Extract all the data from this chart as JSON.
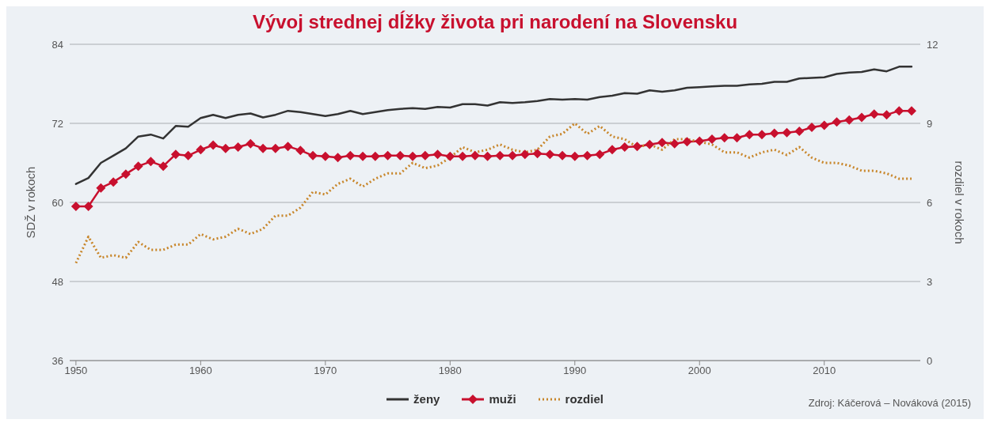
{
  "chart_data": {
    "type": "line",
    "title": "Vývoj strednej dĺžky života pri narodení na Slovensku",
    "ylabel": "SDŽ v rokoch",
    "y2label": "rozdiel v rokoch",
    "annotations": [
      "Zdroj: Káčerová – Nováková (2015)"
    ],
    "x": [
      1950,
      1951,
      1952,
      1953,
      1954,
      1955,
      1956,
      1957,
      1958,
      1959,
      1960,
      1961,
      1962,
      1963,
      1964,
      1965,
      1966,
      1967,
      1968,
      1969,
      1970,
      1971,
      1972,
      1973,
      1974,
      1975,
      1976,
      1977,
      1978,
      1979,
      1980,
      1981,
      1982,
      1983,
      1984,
      1985,
      1986,
      1987,
      1988,
      1989,
      1990,
      1991,
      1992,
      1993,
      1994,
      1995,
      1996,
      1997,
      1998,
      1999,
      2000,
      2001,
      2002,
      2003,
      2004,
      2005,
      2006,
      2007,
      2008,
      2009,
      2010,
      2011,
      2012,
      2013,
      2014,
      2015,
      2016,
      2017
    ],
    "xlim": [
      1949.5,
      2017.7
    ],
    "xticks": [
      1950,
      1960,
      1970,
      1980,
      1990,
      2000,
      2010
    ],
    "ylim": [
      36,
      84
    ],
    "yticks": [
      36,
      48,
      60,
      72,
      84
    ],
    "y2lim": [
      0,
      12
    ],
    "y2ticks": [
      0,
      3,
      6,
      9,
      12
    ],
    "grid": "y",
    "legend": "bottom",
    "series": [
      {
        "name": "ženy",
        "color": "#333333",
        "marker": "none",
        "line_style": "solid",
        "values": [
          62.8,
          63.7,
          66.0,
          67.1,
          68.2,
          70.0,
          70.3,
          69.7,
          71.6,
          71.5,
          72.8,
          73.3,
          72.8,
          73.3,
          73.5,
          72.9,
          73.3,
          73.9,
          73.7,
          73.4,
          73.1,
          73.4,
          73.9,
          73.4,
          73.7,
          74.0,
          74.2,
          74.3,
          74.2,
          74.5,
          74.4,
          74.9,
          74.9,
          74.7,
          75.2,
          75.1,
          75.2,
          75.4,
          75.7,
          75.6,
          75.7,
          75.6,
          76.0,
          76.2,
          76.6,
          76.5,
          77.0,
          76.8,
          77.0,
          77.4,
          77.5,
          77.6,
          77.7,
          77.7,
          77.9,
          78.0,
          78.3,
          78.3,
          78.8,
          78.9,
          79.0,
          79.5,
          79.7,
          79.8,
          80.2,
          79.9,
          80.6,
          80.6
        ]
      },
      {
        "name": "muži",
        "color": "#c8102e",
        "marker": "diamond",
        "line_style": "solid",
        "values": [
          59.4,
          59.4,
          62.2,
          63.1,
          64.3,
          65.5,
          66.2,
          65.5,
          67.3,
          67.1,
          68.0,
          68.7,
          68.2,
          68.4,
          68.9,
          68.2,
          68.2,
          68.5,
          67.9,
          67.1,
          67.0,
          66.8,
          67.1,
          67.0,
          67.0,
          67.1,
          67.1,
          67.0,
          67.1,
          67.3,
          67.0,
          67.0,
          67.1,
          67.0,
          67.1,
          67.1,
          67.3,
          67.4,
          67.3,
          67.1,
          67.0,
          67.1,
          67.3,
          68.0,
          68.4,
          68.5,
          68.8,
          69.1,
          68.9,
          69.2,
          69.3,
          69.6,
          69.8,
          69.8,
          70.3,
          70.3,
          70.5,
          70.6,
          70.8,
          71.4,
          71.7,
          72.2,
          72.5,
          72.9,
          73.4,
          73.3,
          73.9,
          73.9
        ]
      },
      {
        "name": "rozdiel",
        "color": "#c8862a",
        "marker": "none",
        "line_style": "dotted",
        "axis": "y2",
        "values": [
          3.7,
          4.7,
          3.9,
          4.0,
          3.9,
          4.5,
          4.2,
          4.2,
          4.4,
          4.4,
          4.8,
          4.6,
          4.7,
          5.0,
          4.8,
          5.0,
          5.5,
          5.5,
          5.8,
          6.4,
          6.3,
          6.7,
          6.9,
          6.6,
          6.9,
          7.1,
          7.1,
          7.5,
          7.3,
          7.4,
          7.7,
          8.1,
          7.9,
          8.0,
          8.2,
          8.0,
          7.9,
          8.0,
          8.5,
          8.6,
          9.0,
          8.6,
          8.9,
          8.5,
          8.4,
          8.1,
          8.2,
          8.0,
          8.4,
          8.4,
          8.3,
          8.2,
          7.9,
          7.9,
          7.7,
          7.9,
          8.0,
          7.8,
          8.1,
          7.7,
          7.5,
          7.5,
          7.4,
          7.2,
          7.2,
          7.1,
          6.9,
          6.9
        ]
      }
    ]
  }
}
